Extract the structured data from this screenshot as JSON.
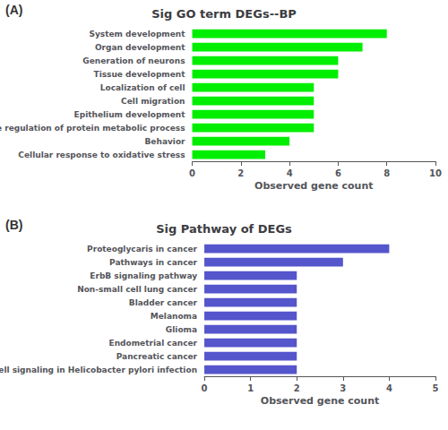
{
  "chart_data": [
    {
      "type": "bar",
      "orientation": "horizontal",
      "title": "Sig GO term DEGs--BP",
      "annotations": [
        "(A)"
      ],
      "categories": [
        "System development",
        "Organ development",
        "Generation of neurons",
        "Tissue development",
        "Localization of cell",
        "Cell migration",
        "Epithelium development",
        "Active regulation of protein metabolic process",
        "Behavior",
        "Cellular response to oxidative stress"
      ],
      "values": [
        8,
        7,
        6,
        6,
        5,
        5,
        5,
        5,
        4,
        3
      ],
      "color": "#00ee00",
      "xlabel": "Observed gene count",
      "xlim": [
        0,
        10
      ],
      "xticks": [
        0,
        2,
        4,
        6,
        8,
        10
      ],
      "grid": false
    },
    {
      "type": "bar",
      "orientation": "horizontal",
      "title": "Sig Pathway of DEGs",
      "annotations": [
        "(B)"
      ],
      "categories": [
        "Proteoglycaris in cancer",
        "Pathways in cancer",
        "ErbB signaling pathway",
        "Non-small cell lung cancer",
        "Bladder cancer",
        "Melanoma",
        "Glioma",
        "Endometrial cancer",
        "Pancreatic cancer",
        "Elial cell signaling in Helicobacter pylori infection"
      ],
      "values": [
        4,
        3,
        2,
        2,
        2,
        2,
        2,
        2,
        2,
        2
      ],
      "color": "#5555cc",
      "xlabel": "Observed gene count",
      "xlim": [
        0,
        5
      ],
      "xticks": [
        0,
        1,
        2,
        3,
        4,
        5
      ],
      "grid": false
    }
  ]
}
